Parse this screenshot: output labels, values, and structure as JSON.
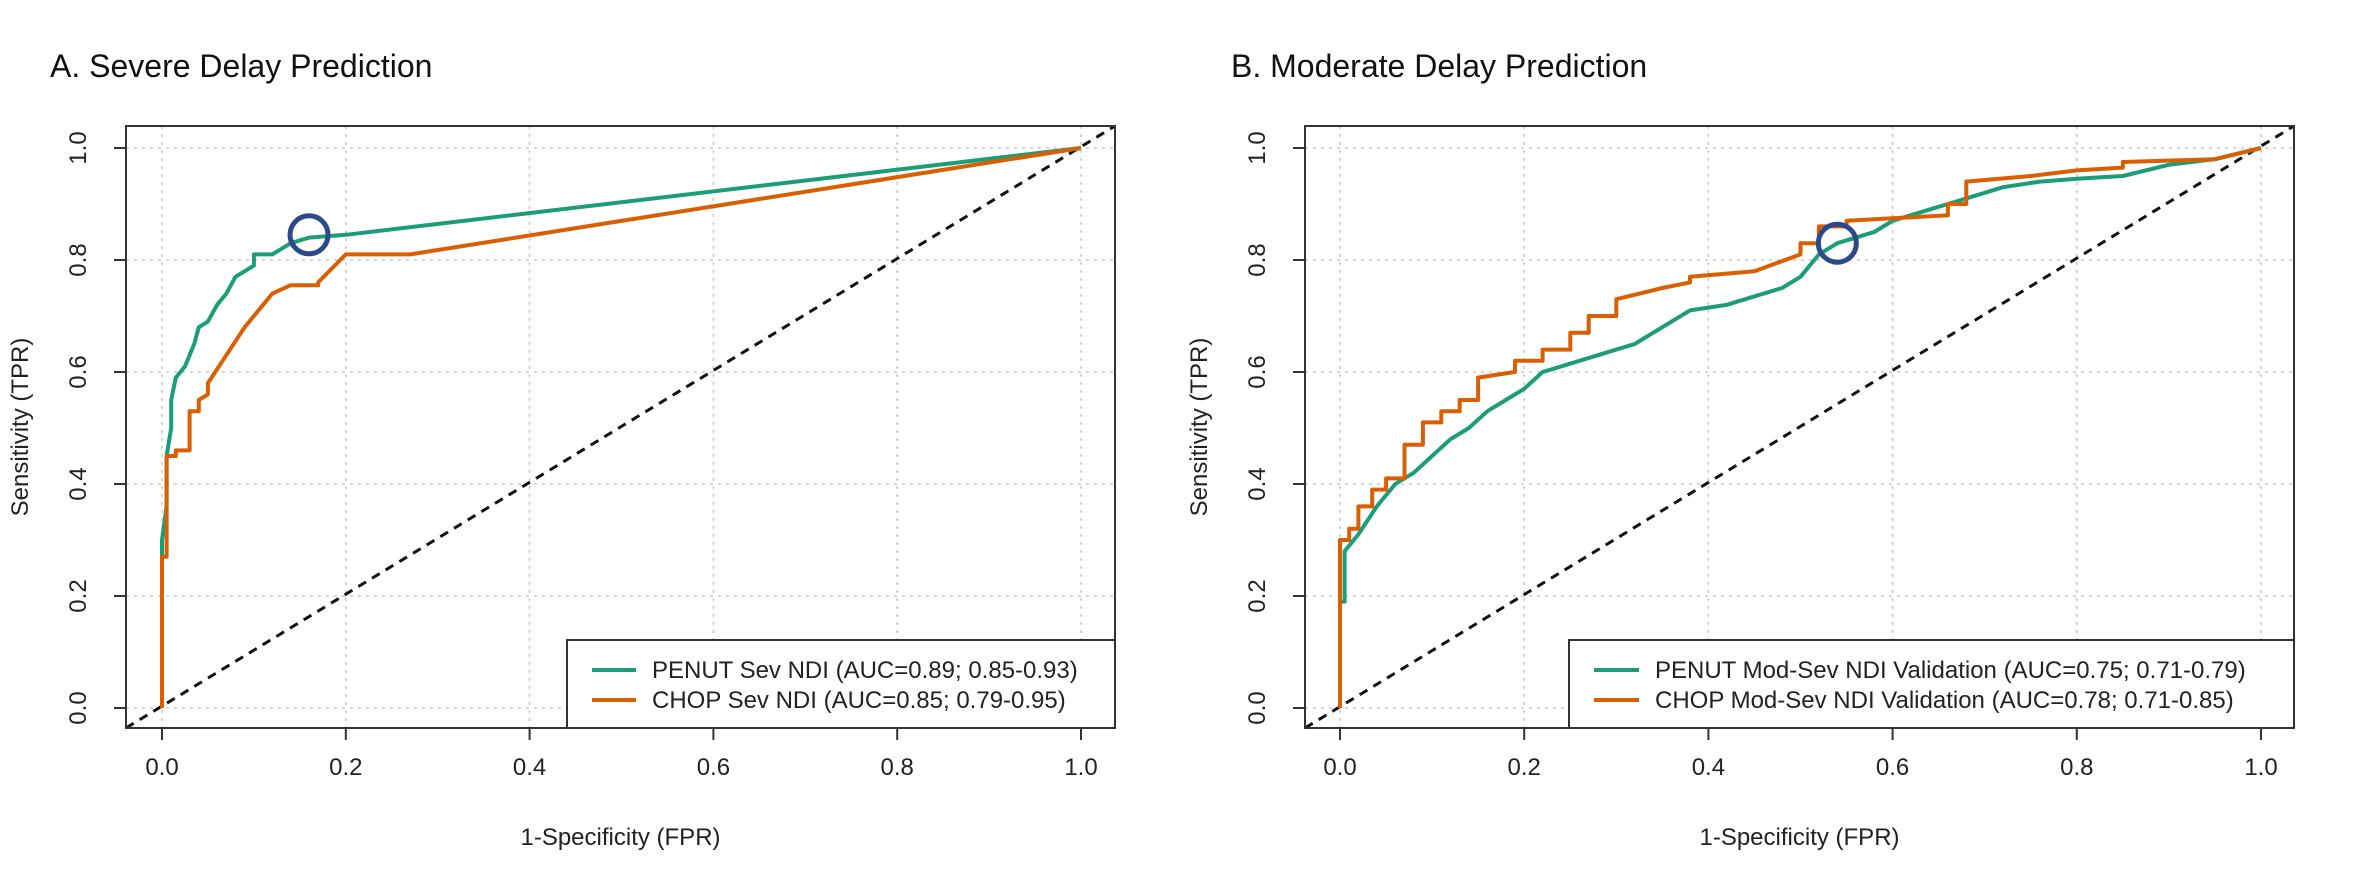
{
  "chart_data": [
    {
      "type": "line",
      "title": "A. Severe Delay Prediction",
      "xlabel": "1-Specificity (FPR)",
      "ylabel": "Sensitivity (TPR)",
      "xlim": [
        0,
        1
      ],
      "ylim": [
        0,
        1
      ],
      "xticks": [
        "0.0",
        "0.2",
        "0.4",
        "0.6",
        "0.8",
        "1.0"
      ],
      "yticks": [
        "0.0",
        "0.2",
        "0.4",
        "0.6",
        "0.8",
        "1.0"
      ],
      "grid": true,
      "legend_position": "bottom-right",
      "diagonal_reference": true,
      "series": [
        {
          "name": "PENUT Sev NDI (AUC=0.89; 0.85-0.93)",
          "color": "#1b9e77",
          "x": [
            0.0,
            0.0,
            0.005,
            0.005,
            0.01,
            0.01,
            0.015,
            0.02,
            0.025,
            0.03,
            0.035,
            0.04,
            0.05,
            0.06,
            0.07,
            0.08,
            0.09,
            0.1,
            0.1,
            0.12,
            0.13,
            0.14,
            0.16,
            0.2,
            1.0
          ],
          "y": [
            0.0,
            0.3,
            0.36,
            0.45,
            0.5,
            0.55,
            0.59,
            0.6,
            0.61,
            0.63,
            0.65,
            0.68,
            0.69,
            0.72,
            0.74,
            0.77,
            0.78,
            0.79,
            0.81,
            0.81,
            0.82,
            0.83,
            0.84,
            0.845,
            1.0
          ]
        },
        {
          "name": "CHOP Sev NDI (AUC=0.85; 0.79-0.95)",
          "color": "#d95f02",
          "x": [
            0.0,
            0.0,
            0.005,
            0.005,
            0.015,
            0.015,
            0.03,
            0.03,
            0.04,
            0.04,
            0.05,
            0.05,
            0.07,
            0.09,
            0.11,
            0.12,
            0.14,
            0.16,
            0.17,
            0.17,
            0.2,
            0.27,
            1.0
          ],
          "y": [
            0.0,
            0.27,
            0.27,
            0.45,
            0.45,
            0.46,
            0.46,
            0.53,
            0.53,
            0.55,
            0.56,
            0.58,
            0.63,
            0.68,
            0.72,
            0.74,
            0.755,
            0.755,
            0.755,
            0.76,
            0.81,
            0.81,
            1.0
          ]
        }
      ],
      "highlight_point": {
        "x": 0.16,
        "y": 0.845,
        "color": "#2c4a8a"
      }
    },
    {
      "type": "line",
      "title": "B. Moderate Delay Prediction",
      "xlabel": "1-Specificity (FPR)",
      "ylabel": "Sensitivity (TPR)",
      "xlim": [
        0,
        1
      ],
      "ylim": [
        0,
        1
      ],
      "xticks": [
        "0.0",
        "0.2",
        "0.4",
        "0.6",
        "0.8",
        "1.0"
      ],
      "yticks": [
        "0.0",
        "0.2",
        "0.4",
        "0.6",
        "0.8",
        "1.0"
      ],
      "grid": true,
      "legend_position": "bottom-right",
      "diagonal_reference": true,
      "series": [
        {
          "name": "PENUT Mod-Sev NDI Validation (AUC=0.75; 0.71-0.79)",
          "color": "#1b9e77",
          "x": [
            0.0,
            0.0,
            0.005,
            0.005,
            0.02,
            0.04,
            0.06,
            0.08,
            0.1,
            0.12,
            0.14,
            0.16,
            0.18,
            0.2,
            0.22,
            0.24,
            0.26,
            0.28,
            0.3,
            0.32,
            0.34,
            0.36,
            0.38,
            0.4,
            0.42,
            0.44,
            0.46,
            0.48,
            0.5,
            0.52,
            0.54,
            0.56,
            0.58,
            0.6,
            0.62,
            0.64,
            0.66,
            0.68,
            0.7,
            0.72,
            0.74,
            0.76,
            0.8,
            0.85,
            0.9,
            0.95,
            1.0
          ],
          "y": [
            0.0,
            0.19,
            0.19,
            0.28,
            0.31,
            0.36,
            0.4,
            0.42,
            0.45,
            0.48,
            0.5,
            0.53,
            0.55,
            0.57,
            0.6,
            0.61,
            0.62,
            0.63,
            0.64,
            0.65,
            0.67,
            0.69,
            0.71,
            0.715,
            0.72,
            0.73,
            0.74,
            0.75,
            0.77,
            0.81,
            0.83,
            0.84,
            0.85,
            0.87,
            0.88,
            0.89,
            0.9,
            0.91,
            0.92,
            0.93,
            0.935,
            0.94,
            0.945,
            0.95,
            0.97,
            0.98,
            1.0
          ]
        },
        {
          "name": "CHOP Mod-Sev NDI Validation (AUC=0.78; 0.71-0.85)",
          "color": "#d95f02",
          "x": [
            0.0,
            0.0,
            0.01,
            0.01,
            0.02,
            0.02,
            0.035,
            0.035,
            0.05,
            0.05,
            0.07,
            0.07,
            0.09,
            0.09,
            0.11,
            0.11,
            0.13,
            0.13,
            0.15,
            0.15,
            0.19,
            0.19,
            0.22,
            0.22,
            0.25,
            0.25,
            0.27,
            0.27,
            0.3,
            0.3,
            0.35,
            0.38,
            0.38,
            0.45,
            0.5,
            0.5,
            0.52,
            0.52,
            0.55,
            0.55,
            0.66,
            0.66,
            0.68,
            0.68,
            0.75,
            0.8,
            0.85,
            0.85,
            0.95,
            1.0
          ],
          "y": [
            0.0,
            0.3,
            0.3,
            0.32,
            0.32,
            0.36,
            0.36,
            0.39,
            0.39,
            0.41,
            0.41,
            0.47,
            0.47,
            0.51,
            0.51,
            0.53,
            0.53,
            0.55,
            0.55,
            0.59,
            0.6,
            0.62,
            0.62,
            0.64,
            0.64,
            0.67,
            0.67,
            0.7,
            0.7,
            0.73,
            0.75,
            0.76,
            0.77,
            0.78,
            0.81,
            0.83,
            0.83,
            0.86,
            0.86,
            0.87,
            0.88,
            0.9,
            0.9,
            0.94,
            0.95,
            0.96,
            0.965,
            0.975,
            0.98,
            1.0
          ]
        }
      ],
      "highlight_point": {
        "x": 0.54,
        "y": 0.83,
        "color": "#2c4a8a"
      }
    }
  ]
}
